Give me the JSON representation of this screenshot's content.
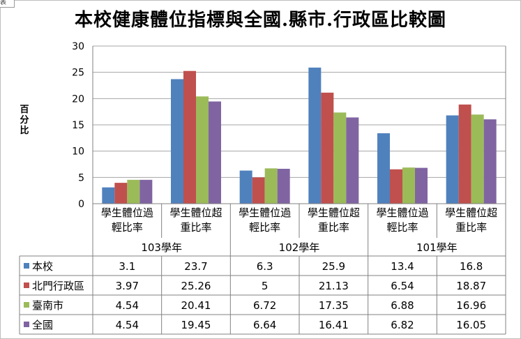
{
  "corner_tab": "表",
  "chart_data": {
    "type": "bar",
    "title": "本校健康體位指標與全國.縣市.行政區比較圖",
    "ylabel": "百分比",
    "xlabel": "",
    "ylim": [
      0,
      30
    ],
    "yticks": [
      0,
      5,
      10,
      15,
      20,
      25,
      30
    ],
    "grid": true,
    "legend": "data-table-left",
    "groups": [
      {
        "label": "103學年",
        "categories": [
          [
            "學生體位過",
            "輕比率"
          ],
          [
            "學生體位超",
            "重比率"
          ]
        ]
      },
      {
        "label": "102學年",
        "categories": [
          [
            "學生體位過",
            "輕比率"
          ],
          [
            "學生體位超",
            "重比率"
          ]
        ]
      },
      {
        "label": "101學年",
        "categories": [
          [
            "學生體位過",
            "輕比率"
          ],
          [
            "學生體位超",
            "重比率"
          ]
        ]
      }
    ],
    "series": [
      {
        "name": "本校",
        "color": "#4f81bd",
        "values": [
          3.1,
          23.7,
          6.3,
          25.9,
          13.4,
          16.8
        ],
        "labels": [
          "3.1",
          "23.7",
          "6.3",
          "25.9",
          "13.4",
          "16.8"
        ]
      },
      {
        "name": "北門行政區",
        "color": "#c0504d",
        "values": [
          3.97,
          25.26,
          5,
          21.13,
          6.54,
          18.87
        ],
        "labels": [
          "3.97",
          "25.26",
          "5",
          "21.13",
          "6.54",
          "18.87"
        ]
      },
      {
        "name": "臺南市",
        "color": "#9bbb59",
        "values": [
          4.54,
          20.41,
          6.72,
          17.35,
          6.88,
          16.96
        ],
        "labels": [
          "4.54",
          "20.41",
          "6.72",
          "17.35",
          "6.88",
          "16.96"
        ]
      },
      {
        "name": "全國",
        "color": "#8064a2",
        "values": [
          4.54,
          19.45,
          6.64,
          16.41,
          6.82,
          16.05
        ],
        "labels": [
          "4.54",
          "19.45",
          "6.64",
          "16.41",
          "6.82",
          "16.05"
        ]
      }
    ]
  }
}
